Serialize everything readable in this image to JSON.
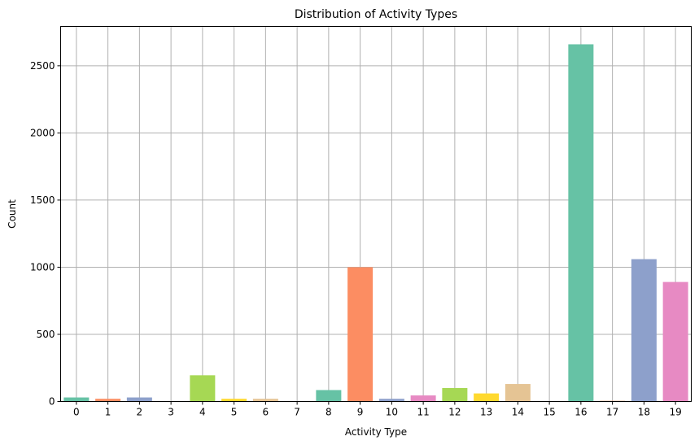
{
  "chart_data": {
    "type": "bar",
    "title": "Distribution of Activity Types",
    "xlabel": "Activity Type",
    "ylabel": "Count",
    "categories": [
      "0",
      "1",
      "2",
      "3",
      "4",
      "5",
      "6",
      "7",
      "8",
      "9",
      "10",
      "11",
      "12",
      "13",
      "14",
      "15",
      "16",
      "17",
      "18",
      "19"
    ],
    "values": [
      30,
      20,
      30,
      3,
      195,
      20,
      20,
      3,
      85,
      1000,
      20,
      45,
      100,
      60,
      130,
      3,
      2660,
      5,
      1060,
      890
    ],
    "colors": [
      "#66c2a5",
      "#fc8d62",
      "#8da0cb",
      "#e78ac3",
      "#a6d854",
      "#ffd92f",
      "#e5c494",
      "#b3b3b3",
      "#66c2a5",
      "#fc8d62",
      "#8da0cb",
      "#e78ac3",
      "#a6d854",
      "#ffd92f",
      "#e5c494",
      "#b3b3b3",
      "#66c2a5",
      "#fc8d62",
      "#8da0cb",
      "#e78ac3"
    ],
    "yticks": [
      0,
      500,
      1000,
      1500,
      2000,
      2500
    ],
    "ylim": [
      0,
      2793
    ],
    "grid": true,
    "legend": "none"
  }
}
